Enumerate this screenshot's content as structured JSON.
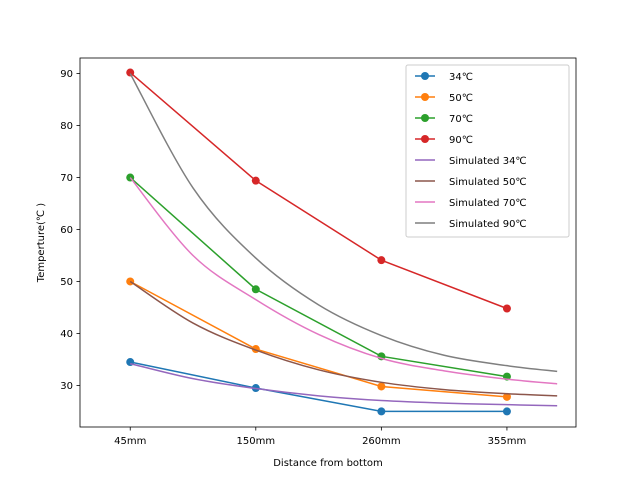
{
  "chart_data": {
    "type": "line",
    "title": "",
    "xlabel": "Distance from bottom",
    "ylabel": "Temperture(℃ )",
    "categories": [
      "45mm",
      "150mm",
      "260mm",
      "355mm"
    ],
    "xlim": [
      -0.4,
      3.55
    ],
    "ylim": [
      22,
      93
    ],
    "yticks": [
      30,
      40,
      50,
      60,
      70,
      80,
      90
    ],
    "legend_position": "upper right",
    "series": [
      {
        "name": "34℃",
        "color": "#1f77b4",
        "marker": "circle",
        "x": [
          0,
          1,
          2,
          3
        ],
        "values": [
          34.5,
          29.5,
          25.0,
          25.0
        ]
      },
      {
        "name": "50℃",
        "color": "#ff7f0e",
        "marker": "circle",
        "x": [
          0,
          1,
          2,
          3
        ],
        "values": [
          50.0,
          37.0,
          29.8,
          27.8
        ]
      },
      {
        "name": "70℃",
        "color": "#2ca02c",
        "marker": "circle",
        "x": [
          0,
          1,
          2,
          3
        ],
        "values": [
          70.0,
          48.5,
          35.6,
          31.7
        ]
      },
      {
        "name": "90℃",
        "color": "#d62728",
        "marker": "circle",
        "x": [
          0,
          1,
          2,
          3
        ],
        "values": [
          90.2,
          69.4,
          54.1,
          44.8
        ]
      },
      {
        "name": "Simulated 34℃",
        "color": "#9467bd",
        "marker": "none",
        "x": [
          0,
          0.5,
          1,
          1.5,
          2,
          2.5,
          3,
          3.4
        ],
        "values": [
          34.2,
          31.3,
          29.4,
          28.0,
          27.1,
          26.6,
          26.3,
          26.1
        ]
      },
      {
        "name": "Simulated 50℃",
        "color": "#8c564b",
        "marker": "none",
        "x": [
          0,
          0.5,
          1,
          1.5,
          2,
          2.5,
          3,
          3.4
        ],
        "values": [
          50.0,
          42.0,
          36.8,
          33.0,
          30.6,
          29.2,
          28.4,
          28.0
        ]
      },
      {
        "name": "Simulated 70℃",
        "color": "#e377c2",
        "marker": "none",
        "x": [
          0,
          0.5,
          1,
          1.5,
          2,
          2.5,
          3,
          3.4
        ],
        "values": [
          70.0,
          55.0,
          46.5,
          39.8,
          35.2,
          32.8,
          31.2,
          30.3
        ]
      },
      {
        "name": "Simulated 90℃",
        "color": "#7f7f7f",
        "marker": "none",
        "x": [
          0,
          0.5,
          1,
          1.5,
          2,
          2.5,
          3,
          3.4
        ],
        "values": [
          90.0,
          68.0,
          54.5,
          45.5,
          39.6,
          35.8,
          33.8,
          32.7
        ]
      }
    ]
  }
}
